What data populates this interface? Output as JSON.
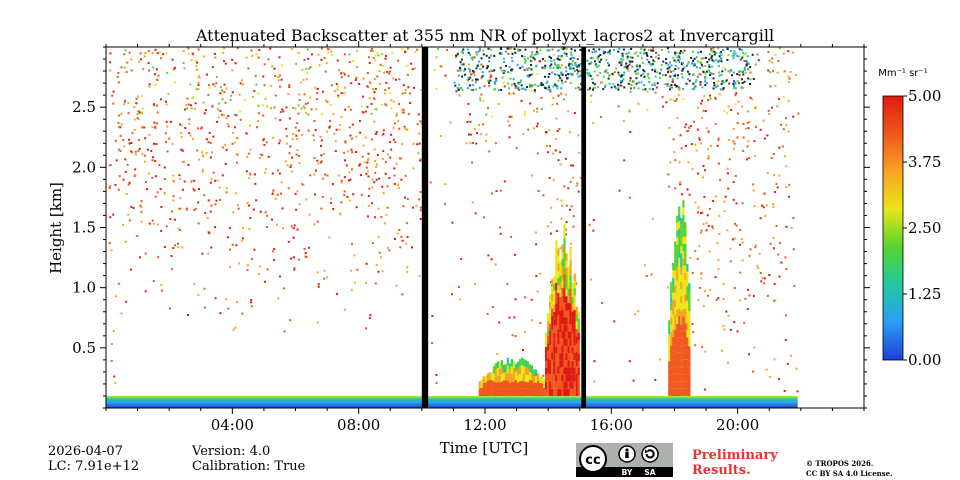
{
  "chart_data": {
    "type": "heatmap",
    "title": "Attenuated Backscatter at 355 nm NR of pollyxt_lacros2 at Invercargill",
    "xlabel": "Time [UTC]",
    "ylabel": "Height [km]",
    "xlim_hours": [
      0,
      24
    ],
    "ylim_km": [
      0,
      3.0
    ],
    "x_ticks": [
      {
        "hour": 4,
        "label": "04:00"
      },
      {
        "hour": 8,
        "label": "08:00"
      },
      {
        "hour": 12,
        "label": "12:00"
      },
      {
        "hour": 16,
        "label": "16:00"
      },
      {
        "hour": 20,
        "label": "20:00"
      }
    ],
    "y_ticks": [
      {
        "km": 0.5,
        "label": "0.5"
      },
      {
        "km": 1.0,
        "label": "1.0"
      },
      {
        "km": 1.5,
        "label": "1.5"
      },
      {
        "km": 2.0,
        "label": "2.0"
      },
      {
        "km": 2.5,
        "label": "2.5"
      }
    ],
    "colorbar": {
      "unit_label": "Mm⁻¹ sr⁻¹",
      "min": 0.0,
      "max": 5.0,
      "ticks": [
        "0.00",
        "1.25",
        "2.50",
        "3.75",
        "5.00"
      ],
      "colormap": [
        "#1f3fd6",
        "#2a9df4",
        "#22c9a0",
        "#58d32f",
        "#e9e619",
        "#f7a521",
        "#f0571c",
        "#e01a12"
      ]
    },
    "data_gaps_hours": [
      [
        10.0,
        10.2
      ],
      [
        15.05,
        15.2
      ]
    ],
    "data_end_hour": 21.9,
    "features": [
      {
        "name": "Near-surface layer",
        "from_hour": 0,
        "to_hour": 21.9,
        "top_km": 0.1
      },
      {
        "name": "Boundary-layer aerosol",
        "from_hour": 11.8,
        "to_hour": 13.9,
        "top_km": 0.35
      },
      {
        "name": "Dense aerosol plume",
        "from_hour": 13.9,
        "to_hour": 15.0,
        "top_km": 1.5
      },
      {
        "name": "Aerosol layer",
        "from_hour": 17.8,
        "to_hour": 18.5,
        "top_km": 1.8
      }
    ]
  },
  "info": {
    "date": "2026-04-07",
    "lc": "LC: 7.91e+12",
    "version": "Version: 4.0",
    "calibration": "Calibration: True"
  },
  "license": {
    "cc": "cc",
    "by": "BY",
    "sa": "SA",
    "preliminary_line1": "Preliminary",
    "preliminary_line2": "Results.",
    "copyright_line1": "© TROPOS 2026.",
    "copyright_line2": "CC BY SA 4.0 License."
  }
}
